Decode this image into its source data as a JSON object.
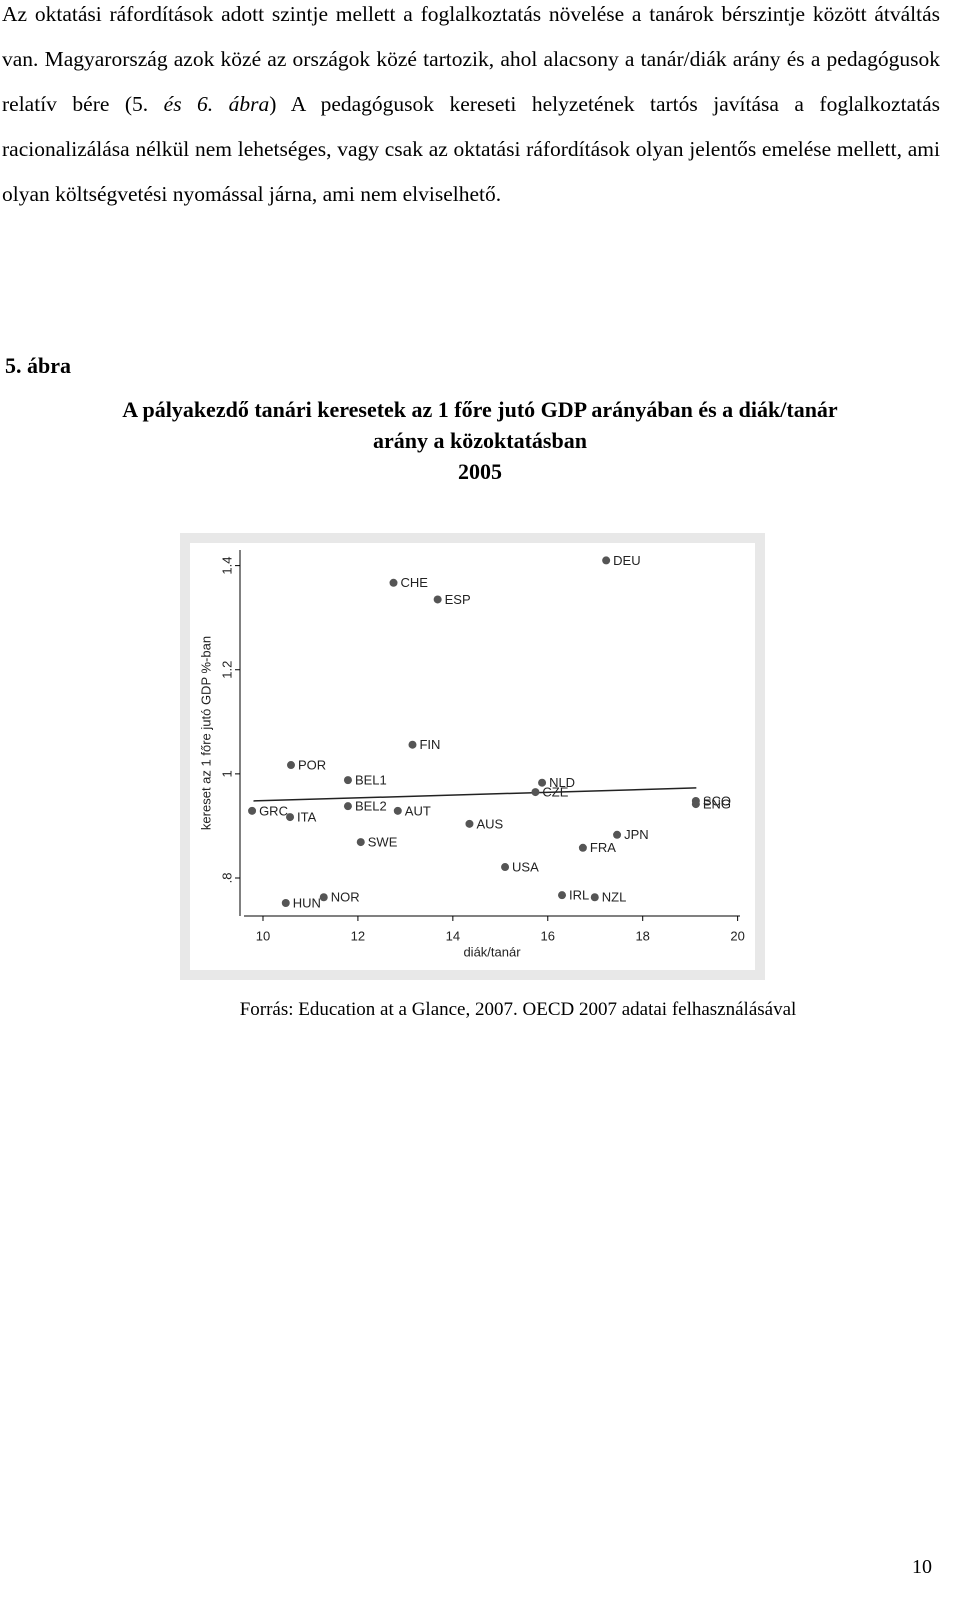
{
  "paragraph": [
    "Az oktatási ráfordítások adott szintje mellett a foglalkoztatás növelése a tanárok bérszintje között átváltás van. Magyarország azok közé az országok közé tartozik, ahol alacsony a tanár/diák arány és a pedagógusok relatív bére (5. ",
    "és 6. ábra",
    ") A pedagógusok kereseti helyzetének tartós javítása a foglalkoztatás racionalizálása nélkül nem lehetséges, vagy csak az oktatási ráfordítások olyan jelentős emelése mellett, ami olyan költségvetési nyomással járna, ami nem elviselhető."
  ],
  "figure_label": "5. ábra",
  "figure_title": "A pályakezdő tanári keresetek az 1 főre jutó GDP arányában és a diák/tanár arány a közoktatásban",
  "figure_year": "2005",
  "source": "Forrás: Education at a Glance, 2007. OECD 2007 adatai felhasználásával",
  "page_number": "10",
  "chart_data": {
    "type": "scatter",
    "x_label": "diák/tanár",
    "y_label": "kereset az 1 főre jutó GDP %-ban",
    "point_labels": [
      "DEU",
      "CHE",
      "ESP",
      "FIN",
      "POR",
      "BEL1",
      "NLD",
      "CZE",
      "GRC",
      "SCO",
      "ENG",
      "BEL2",
      "AUT",
      "ITA",
      "AUS",
      "JPN",
      "SWE",
      "FRA",
      "USA",
      "IRL",
      "NZL",
      "NOR",
      "HUN"
    ],
    "x": [
      17.23,
      12.75,
      13.68,
      13.15,
      10.59,
      11.79,
      15.88,
      15.74,
      9.77,
      19.12,
      19.12,
      11.79,
      12.84,
      10.57,
      14.35,
      17.46,
      12.06,
      16.74,
      15.1,
      16.3,
      16.99,
      11.28,
      10.48
    ],
    "values": [
      1.41,
      1.367,
      1.335,
      1.056,
      1.017,
      0.988,
      0.983,
      0.965,
      0.929,
      0.948,
      0.942,
      0.938,
      0.929,
      0.917,
      0.904,
      0.883,
      0.869,
      0.858,
      0.821,
      0.767,
      0.763,
      0.763,
      0.752
    ],
    "color": "#555555",
    "fit_line": {
      "x": [
        9.8,
        19.13
      ],
      "values": [
        0.948,
        0.973
      ],
      "color": "#222222"
    },
    "xlim": [
      9.6,
      20.05
    ],
    "ylim": [
      0.727,
      1.43
    ],
    "xticks": [
      10,
      12,
      14,
      16,
      18,
      20
    ],
    "yticks": [
      {
        "value": 0.8,
        "label": ".8"
      },
      1,
      1.2,
      1.4
    ]
  }
}
